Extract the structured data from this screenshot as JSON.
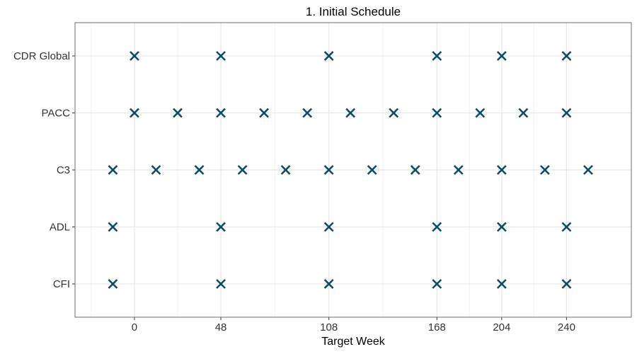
{
  "chart_data": {
    "type": "scatter",
    "title": "1. Initial Schedule",
    "xlabel": "Target Week",
    "ylabel": "",
    "x_ticks": [
      0,
      48,
      108,
      168,
      204,
      240
    ],
    "xlim": [
      -33,
      276
    ],
    "categories": [
      "CFI",
      "ADL",
      "C3",
      "PACC",
      "CDR Global"
    ],
    "grid": true,
    "marker": "x",
    "marker_color": "#0b4d66",
    "series": [
      {
        "category": "CDR Global",
        "x": [
          0,
          48,
          108,
          168,
          204,
          240
        ]
      },
      {
        "category": "PACC",
        "x": [
          0,
          24,
          48,
          72,
          96,
          120,
          144,
          168,
          192,
          216,
          240
        ]
      },
      {
        "category": "C3",
        "x": [
          -12,
          12,
          36,
          60,
          84,
          108,
          132,
          156,
          180,
          204,
          228,
          252
        ]
      },
      {
        "category": "ADL",
        "x": [
          -12,
          48,
          108,
          168,
          204,
          240
        ]
      },
      {
        "category": "CFI",
        "x": [
          -12,
          48,
          108,
          168,
          204,
          240
        ]
      }
    ]
  }
}
